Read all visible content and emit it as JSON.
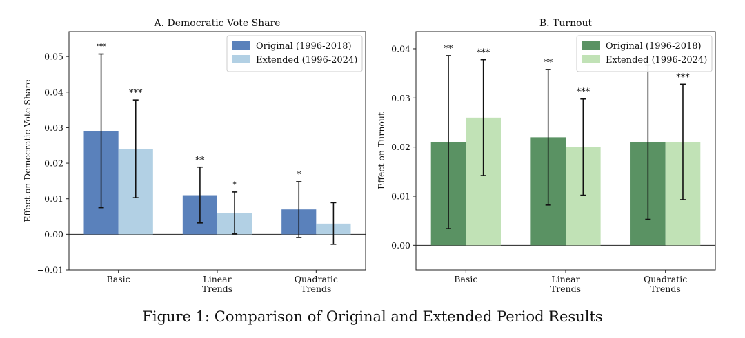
{
  "caption": "Figure 1: Comparison of Original and Extended Period Results",
  "chart_data": [
    {
      "type": "bar",
      "title": "A. Democratic Vote Share",
      "xlabel": "",
      "ylabel": "Effect on Democratic Vote Share",
      "ylim": [
        -0.01,
        0.057
      ],
      "yticks": [
        -0.01,
        0.0,
        0.01,
        0.02,
        0.03,
        0.04,
        0.05
      ],
      "ytick_labels": [
        "−0.01",
        "0.00",
        "0.01",
        "0.02",
        "0.03",
        "0.04",
        "0.05"
      ],
      "categories": [
        [
          "Basic"
        ],
        [
          "Linear",
          "Trends"
        ],
        [
          "Quadratic",
          "Trends"
        ]
      ],
      "legend_position": "top-right",
      "series": [
        {
          "name": "Original (1996-2018)",
          "color": "#5a81bb",
          "values": [
            0.029,
            0.011,
            0.007
          ],
          "err_low": [
            0.0075,
            0.0032,
            -0.0009
          ],
          "err_high": [
            0.0507,
            0.0189,
            0.0148
          ],
          "stars": [
            "**",
            "**",
            "*"
          ]
        },
        {
          "name": "Extended (1996-2024)",
          "color": "#b2d0e4",
          "values": [
            0.024,
            0.006,
            0.003
          ],
          "err_low": [
            0.0103,
            0.0001,
            -0.0028
          ],
          "err_high": [
            0.0378,
            0.0119,
            0.0089
          ],
          "stars": [
            "***",
            "*",
            ""
          ]
        }
      ]
    },
    {
      "type": "bar",
      "title": "B. Turnout",
      "xlabel": "",
      "ylabel": "Effect on Turnout",
      "ylim": [
        -0.005,
        0.0435
      ],
      "yticks": [
        0.0,
        0.01,
        0.02,
        0.03,
        0.04
      ],
      "ytick_labels": [
        "0.00",
        "0.01",
        "0.02",
        "0.03",
        "0.04"
      ],
      "categories": [
        [
          "Basic"
        ],
        [
          "Linear",
          "Trends"
        ],
        [
          "Quadratic",
          "Trends"
        ]
      ],
      "legend_position": "top-right",
      "series": [
        {
          "name": "Original (1996-2018)",
          "color": "#5a9263",
          "values": [
            0.021,
            0.022,
            0.021
          ],
          "err_low": [
            0.0034,
            0.0082,
            0.0053
          ],
          "err_high": [
            0.0386,
            0.0358,
            0.0367
          ],
          "stars": [
            "**",
            "**",
            ""
          ]
        },
        {
          "name": "Extended (1996-2024)",
          "color": "#c1e2b6",
          "values": [
            0.026,
            0.02,
            0.021
          ],
          "err_low": [
            0.0142,
            0.0102,
            0.0093
          ],
          "err_high": [
            0.0378,
            0.0298,
            0.0328
          ],
          "stars": [
            "***",
            "***",
            "***"
          ]
        }
      ]
    }
  ]
}
